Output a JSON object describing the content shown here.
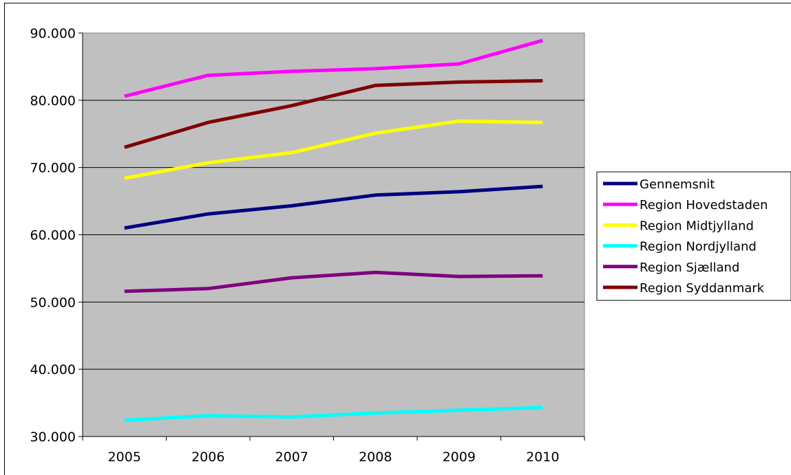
{
  "chart_data": {
    "type": "line",
    "title": "",
    "xlabel": "",
    "ylabel": "",
    "categories": [
      "2005",
      "2006",
      "2007",
      "2008",
      "2009",
      "2010"
    ],
    "ylim": [
      30000,
      90000
    ],
    "yticks": [
      30000,
      40000,
      50000,
      60000,
      70000,
      80000,
      90000
    ],
    "ytick_labels": [
      "30.000",
      "40.000",
      "50.000",
      "60.000",
      "70.000",
      "80.000",
      "90.000"
    ],
    "grid": true,
    "plot_background": "#c0c0c0",
    "legend_position": "right",
    "series": [
      {
        "name": "Gennemsnit",
        "color": "#000080",
        "values": [
          61000,
          63100,
          64300,
          65900,
          66400,
          67200
        ]
      },
      {
        "name": "Region Hovedstaden",
        "color": "#ff00ff",
        "values": [
          80600,
          83700,
          84300,
          84700,
          85400,
          88900
        ]
      },
      {
        "name": "Region Midtjylland",
        "color": "#ffff00",
        "values": [
          68400,
          70700,
          72200,
          75100,
          76900,
          76700
        ]
      },
      {
        "name": "Region Nordjylland",
        "color": "#00ffff",
        "values": [
          32400,
          33100,
          32900,
          33500,
          33900,
          34300
        ]
      },
      {
        "name": "Region Sjælland",
        "color": "#800080",
        "values": [
          51600,
          52000,
          53600,
          54400,
          53800,
          53900
        ]
      },
      {
        "name": "Region Syddanmark",
        "color": "#800000",
        "values": [
          73000,
          76700,
          79200,
          82200,
          82700,
          82900
        ]
      }
    ]
  }
}
